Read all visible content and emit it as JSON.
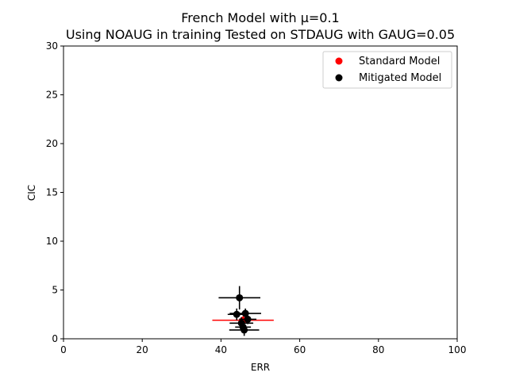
{
  "chart_data": {
    "type": "scatter",
    "title_line1": "French Model with μ=0.1",
    "title_line2": "Using NOAUG in training Tested on STDAUG with GAUG=0.05",
    "xlabel": "ERR",
    "ylabel": "CIC",
    "xlim": [
      0,
      100
    ],
    "ylim": [
      0,
      30
    ],
    "xticks": [
      0,
      20,
      40,
      60,
      80,
      100
    ],
    "yticks": [
      0,
      5,
      10,
      15,
      20,
      25,
      30
    ],
    "grid": false,
    "legend_position": "top-right",
    "series": [
      {
        "name": "Standard Model",
        "color": "#ff0000",
        "points": [
          {
            "x": 45.6,
            "y": 1.9,
            "xerr": 7.8,
            "yerr": 0.4
          }
        ]
      },
      {
        "name": "Mitigated Model",
        "color": "#000000",
        "points": [
          {
            "x": 44.7,
            "y": 4.2,
            "xerr": 5.3,
            "yerr": 1.2
          },
          {
            "x": 44.0,
            "y": 2.5,
            "xerr": 2.3,
            "yerr": 0.6
          },
          {
            "x": 46.2,
            "y": 2.6,
            "xerr": 4.0,
            "yerr": 0.5
          },
          {
            "x": 46.8,
            "y": 2.0,
            "xerr": 2.2,
            "yerr": 0.5
          },
          {
            "x": 45.2,
            "y": 1.6,
            "xerr": 3.0,
            "yerr": 0.6
          },
          {
            "x": 45.6,
            "y": 1.2,
            "xerr": 2.0,
            "yerr": 0.5
          },
          {
            "x": 45.9,
            "y": 0.9,
            "xerr": 3.8,
            "yerr": 0.6
          }
        ]
      }
    ]
  }
}
